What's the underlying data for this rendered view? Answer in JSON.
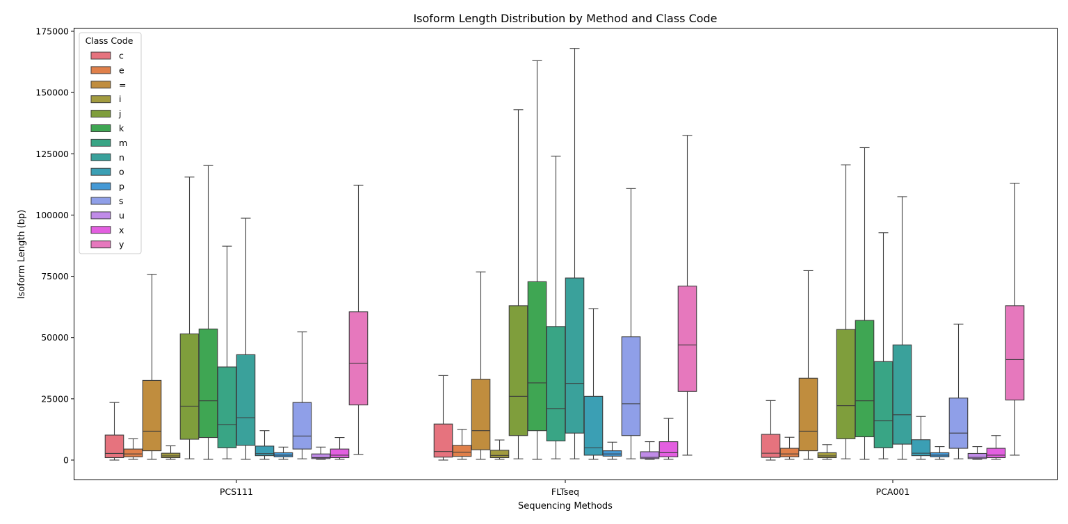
{
  "chart_data": {
    "type": "boxplot",
    "title": "Isoform Length Distribution by Method and Class Code",
    "xlabel": "Sequencing Methods",
    "ylabel": "Isoform Length (bp)",
    "ylim": [
      -8500,
      176000
    ],
    "yticks": [
      0,
      25000,
      50000,
      75000,
      100000,
      125000,
      150000,
      175000
    ],
    "ytick_labels": [
      "0",
      "25000",
      "50000",
      "75000",
      "100000",
      "125000",
      "150000",
      "175000"
    ],
    "categories": [
      "PCS111",
      "FLTseq",
      "PCA001"
    ],
    "grid": false,
    "legend": {
      "title": "Class Code",
      "position": "top-left"
    },
    "series": [
      {
        "name": "c",
        "color": "#e6737e",
        "boxes": [
          {
            "whislo": 0,
            "q1": 1000,
            "med": 2700,
            "q3": 10200,
            "whishi": 23500
          },
          {
            "whislo": 0,
            "q1": 1200,
            "med": 3500,
            "q3": 14700,
            "whishi": 34500
          },
          {
            "whislo": 0,
            "q1": 1100,
            "med": 2800,
            "q3": 10500,
            "whishi": 24300
          }
        ]
      },
      {
        "name": "e",
        "color": "#e0804a",
        "boxes": [
          {
            "whislo": 300,
            "q1": 1300,
            "med": 2500,
            "q3": 4500,
            "whishi": 8700
          },
          {
            "whislo": 300,
            "q1": 1500,
            "med": 3200,
            "q3": 6000,
            "whishi": 12500
          },
          {
            "whislo": 300,
            "q1": 1300,
            "med": 2500,
            "q3": 4800,
            "whishi": 9300
          }
        ]
      },
      {
        "name": "=",
        "color": "#c08d3e",
        "boxes": [
          {
            "whislo": 300,
            "q1": 3800,
            "med": 11800,
            "q3": 32500,
            "whishi": 75800
          },
          {
            "whislo": 300,
            "q1": 4200,
            "med": 12000,
            "q3": 33000,
            "whishi": 76800
          },
          {
            "whislo": 300,
            "q1": 3800,
            "med": 11800,
            "q3": 33400,
            "whishi": 77300
          }
        ]
      },
      {
        "name": "i",
        "color": "#a29b3f",
        "boxes": [
          {
            "whislo": 300,
            "q1": 1000,
            "med": 1700,
            "q3": 2800,
            "whishi": 5800
          },
          {
            "whislo": 300,
            "q1": 1000,
            "med": 1900,
            "q3": 4000,
            "whishi": 8200
          },
          {
            "whislo": 300,
            "q1": 1000,
            "med": 1700,
            "q3": 3000,
            "whishi": 6300
          }
        ]
      },
      {
        "name": "j",
        "color": "#7f9e3c",
        "boxes": [
          {
            "whislo": 500,
            "q1": 8500,
            "med": 22000,
            "q3": 51500,
            "whishi": 115500
          },
          {
            "whislo": 500,
            "q1": 10000,
            "med": 26000,
            "q3": 63000,
            "whishi": 143000
          },
          {
            "whislo": 500,
            "q1": 8700,
            "med": 22200,
            "q3": 53300,
            "whishi": 120500
          }
        ]
      },
      {
        "name": "k",
        "color": "#3fa653",
        "boxes": [
          {
            "whislo": 300,
            "q1": 9200,
            "med": 24200,
            "q3": 53500,
            "whishi": 120200
          },
          {
            "whislo": 300,
            "q1": 12000,
            "med": 31500,
            "q3": 72800,
            "whishi": 163000
          },
          {
            "whislo": 300,
            "q1": 9500,
            "med": 24200,
            "q3": 57000,
            "whishi": 127500
          }
        ]
      },
      {
        "name": "m",
        "color": "#39a585",
        "boxes": [
          {
            "whislo": 500,
            "q1": 5000,
            "med": 14500,
            "q3": 38000,
            "whishi": 87300
          },
          {
            "whislo": 500,
            "q1": 7800,
            "med": 21000,
            "q3": 54500,
            "whishi": 124000
          },
          {
            "whislo": 500,
            "q1": 5000,
            "med": 16000,
            "q3": 40200,
            "whishi": 92800
          }
        ]
      },
      {
        "name": "n",
        "color": "#3aa19b",
        "boxes": [
          {
            "whislo": 300,
            "q1": 6000,
            "med": 17300,
            "q3": 43000,
            "whishi": 98700
          },
          {
            "whislo": 500,
            "q1": 11000,
            "med": 31300,
            "q3": 74300,
            "whishi": 168000
          },
          {
            "whislo": 300,
            "q1": 6500,
            "med": 18500,
            "q3": 47000,
            "whishi": 107500
          }
        ]
      },
      {
        "name": "o",
        "color": "#3b9fb4",
        "boxes": [
          {
            "whislo": 300,
            "q1": 1800,
            "med": 2600,
            "q3": 5700,
            "whishi": 12000
          },
          {
            "whislo": 300,
            "q1": 2000,
            "med": 5000,
            "q3": 26000,
            "whishi": 61800
          },
          {
            "whislo": 300,
            "q1": 1800,
            "med": 2800,
            "q3": 8300,
            "whishi": 17800
          }
        ]
      },
      {
        "name": "p",
        "color": "#4499d6",
        "boxes": [
          {
            "whislo": 300,
            "q1": 1300,
            "med": 2000,
            "q3": 3000,
            "whishi": 5300
          },
          {
            "whislo": 300,
            "q1": 1600,
            "med": 2500,
            "q3": 3800,
            "whishi": 7300
          },
          {
            "whislo": 300,
            "q1": 1300,
            "med": 2000,
            "q3": 3000,
            "whishi": 5500
          }
        ]
      },
      {
        "name": "s",
        "color": "#8f9fe8",
        "boxes": [
          {
            "whislo": 500,
            "q1": 4500,
            "med": 9800,
            "q3": 23500,
            "whishi": 52300
          },
          {
            "whislo": 500,
            "q1": 10000,
            "med": 23000,
            "q3": 50300,
            "whishi": 110800
          },
          {
            "whislo": 500,
            "q1": 4800,
            "med": 11000,
            "q3": 25300,
            "whishi": 55500
          }
        ]
      },
      {
        "name": "u",
        "color": "#c08be8",
        "boxes": [
          {
            "whislo": 300,
            "q1": 600,
            "med": 1000,
            "q3": 2500,
            "whishi": 5300
          },
          {
            "whislo": 300,
            "q1": 600,
            "med": 1100,
            "q3": 3400,
            "whishi": 7500
          },
          {
            "whislo": 300,
            "q1": 600,
            "med": 1100,
            "q3": 2700,
            "whishi": 5500
          }
        ]
      },
      {
        "name": "x",
        "color": "#e35fe0",
        "boxes": [
          {
            "whislo": 300,
            "q1": 1000,
            "med": 2000,
            "q3": 4500,
            "whishi": 9200
          },
          {
            "whislo": 300,
            "q1": 1300,
            "med": 3000,
            "q3": 7500,
            "whishi": 17000
          },
          {
            "whislo": 300,
            "q1": 1000,
            "med": 2000,
            "q3": 4800,
            "whishi": 10000
          }
        ]
      },
      {
        "name": "y",
        "color": "#e678bd",
        "boxes": [
          {
            "whislo": 2300,
            "q1": 22500,
            "med": 39500,
            "q3": 60500,
            "whishi": 112200
          },
          {
            "whislo": 2000,
            "q1": 28000,
            "med": 47000,
            "q3": 71000,
            "whishi": 132500
          },
          {
            "whislo": 2000,
            "q1": 24500,
            "med": 41000,
            "q3": 63000,
            "whishi": 113000
          }
        ]
      }
    ]
  }
}
